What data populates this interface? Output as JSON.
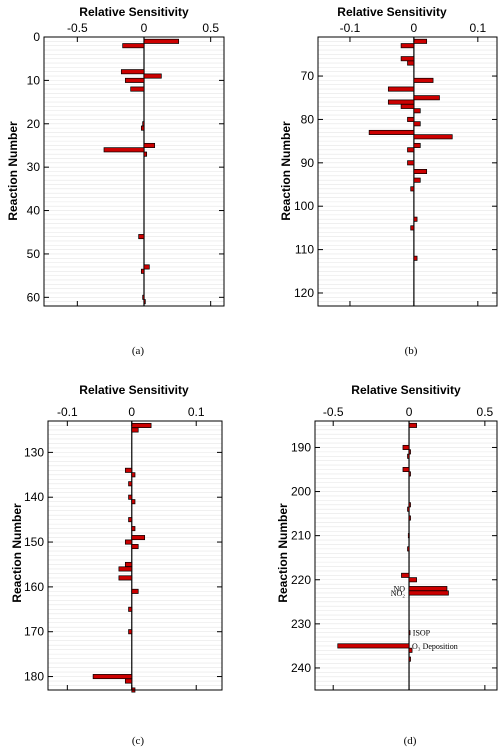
{
  "figure": {
    "bar_color": "#cc0000",
    "bar_edge": "#000000",
    "grid_color": "#e6e6e6"
  },
  "panels": [
    {
      "caption": "(a)",
      "xlabel": "Relative Sensitivity",
      "ylabel": "Reaction Number"
    },
    {
      "caption": "(b)",
      "xlabel": "Relative Sensitivity",
      "ylabel": "Reaction Number"
    },
    {
      "caption": "(c)",
      "xlabel": "Relative Sensitivity",
      "ylabel": "Reaction Number"
    },
    {
      "caption": "(d)",
      "xlabel": "Relative Sensitivity",
      "ylabel": "Reaction Number"
    }
  ],
  "chart_data": [
    {
      "type": "bar",
      "orientation": "horizontal",
      "xlabel": "Relative Sensitivity",
      "ylabel": "Reaction Number",
      "xlim": [
        -0.75,
        0.6
      ],
      "ylim": [
        0,
        62
      ],
      "y_reversed": true,
      "xticks": [
        -0.5,
        0,
        0.5
      ],
      "xtick_labels": [
        "-0.5",
        "0",
        "0.5"
      ],
      "yticks": [
        0,
        10,
        20,
        30,
        40,
        50,
        60
      ],
      "ytick_labels": [
        "0",
        "10",
        "20",
        "30",
        "40",
        "50",
        "60"
      ],
      "grid": true,
      "bars": [
        {
          "reaction": 1,
          "value": 0.26
        },
        {
          "reaction": 2,
          "value": -0.16
        },
        {
          "reaction": 8,
          "value": -0.17
        },
        {
          "reaction": 9,
          "value": 0.13
        },
        {
          "reaction": 10,
          "value": -0.14
        },
        {
          "reaction": 12,
          "value": -0.1
        },
        {
          "reaction": 20,
          "value": -0.01
        },
        {
          "reaction": 21,
          "value": -0.02
        },
        {
          "reaction": 25,
          "value": 0.08
        },
        {
          "reaction": 26,
          "value": -0.3
        },
        {
          "reaction": 27,
          "value": 0.02
        },
        {
          "reaction": 46,
          "value": -0.04
        },
        {
          "reaction": 53,
          "value": 0.04
        },
        {
          "reaction": 54,
          "value": -0.02
        },
        {
          "reaction": 60,
          "value": -0.01
        },
        {
          "reaction": 61,
          "value": 0.01
        }
      ]
    },
    {
      "type": "bar",
      "orientation": "horizontal",
      "xlabel": "Relative Sensitivity",
      "ylabel": "Reaction Number",
      "xlim": [
        -0.15,
        0.13
      ],
      "ylim": [
        61,
        123
      ],
      "y_reversed": true,
      "xticks": [
        -0.1,
        0,
        0.1
      ],
      "xtick_labels": [
        "-0.1",
        "0",
        "0.1"
      ],
      "yticks": [
        70,
        80,
        90,
        100,
        110,
        120
      ],
      "ytick_labels": [
        "70",
        "80",
        "90",
        "100",
        "110",
        "120"
      ],
      "grid": true,
      "bars": [
        {
          "reaction": 62,
          "value": 0.02
        },
        {
          "reaction": 63,
          "value": -0.02
        },
        {
          "reaction": 66,
          "value": -0.02
        },
        {
          "reaction": 67,
          "value": -0.01
        },
        {
          "reaction": 71,
          "value": 0.03
        },
        {
          "reaction": 73,
          "value": -0.04
        },
        {
          "reaction": 75,
          "value": 0.04
        },
        {
          "reaction": 76,
          "value": -0.04
        },
        {
          "reaction": 77,
          "value": -0.02
        },
        {
          "reaction": 78,
          "value": 0.01
        },
        {
          "reaction": 80,
          "value": -0.01
        },
        {
          "reaction": 81,
          "value": 0.01
        },
        {
          "reaction": 83,
          "value": -0.07
        },
        {
          "reaction": 84,
          "value": 0.06
        },
        {
          "reaction": 86,
          "value": 0.01
        },
        {
          "reaction": 87,
          "value": -0.01
        },
        {
          "reaction": 90,
          "value": -0.01
        },
        {
          "reaction": 92,
          "value": 0.02
        },
        {
          "reaction": 94,
          "value": 0.01
        },
        {
          "reaction": 96,
          "value": -0.005
        },
        {
          "reaction": 103,
          "value": 0.005
        },
        {
          "reaction": 105,
          "value": -0.005
        },
        {
          "reaction": 112,
          "value": 0.005
        }
      ]
    },
    {
      "type": "bar",
      "orientation": "horizontal",
      "xlabel": "Relative Sensitivity",
      "ylabel": "Reaction Number",
      "xlim": [
        -0.13,
        0.14
      ],
      "ylim": [
        123,
        183
      ],
      "y_reversed": true,
      "xticks": [
        -0.1,
        0,
        0.1
      ],
      "xtick_labels": [
        "-0.1",
        "0",
        "0.1"
      ],
      "yticks": [
        130,
        140,
        150,
        160,
        170,
        180
      ],
      "ytick_labels": [
        "130",
        "140",
        "150",
        "160",
        "170",
        "180"
      ],
      "grid": true,
      "bars": [
        {
          "reaction": 124,
          "value": 0.03
        },
        {
          "reaction": 125,
          "value": 0.01
        },
        {
          "reaction": 134,
          "value": -0.01
        },
        {
          "reaction": 135,
          "value": 0.005
        },
        {
          "reaction": 137,
          "value": -0.005
        },
        {
          "reaction": 140,
          "value": -0.005
        },
        {
          "reaction": 141,
          "value": 0.005
        },
        {
          "reaction": 145,
          "value": -0.005
        },
        {
          "reaction": 147,
          "value": 0.005
        },
        {
          "reaction": 149,
          "value": 0.02
        },
        {
          "reaction": 150,
          "value": -0.01
        },
        {
          "reaction": 151,
          "value": 0.01
        },
        {
          "reaction": 155,
          "value": -0.01
        },
        {
          "reaction": 156,
          "value": -0.02
        },
        {
          "reaction": 158,
          "value": -0.02
        },
        {
          "reaction": 161,
          "value": 0.01
        },
        {
          "reaction": 165,
          "value": -0.005
        },
        {
          "reaction": 170,
          "value": -0.005
        },
        {
          "reaction": 180,
          "value": -0.06
        },
        {
          "reaction": 181,
          "value": -0.01
        },
        {
          "reaction": 183,
          "value": 0.005
        }
      ]
    },
    {
      "type": "bar",
      "orientation": "horizontal",
      "xlabel": "Relative Sensitivity",
      "ylabel": "Reaction Number",
      "xlim": [
        -0.62,
        0.58
      ],
      "ylim": [
        184,
        245
      ],
      "y_reversed": true,
      "xticks": [
        -0.5,
        0,
        0.5
      ],
      "xtick_labels": [
        "-0.5",
        "0",
        "0.5"
      ],
      "yticks": [
        190,
        200,
        210,
        220,
        230,
        240
      ],
      "ytick_labels": [
        "190",
        "200",
        "210",
        "220",
        "230",
        "240"
      ],
      "grid": true,
      "bars": [
        {
          "reaction": 185,
          "value": 0.05
        },
        {
          "reaction": 190,
          "value": -0.04
        },
        {
          "reaction": 191,
          "value": 0.01
        },
        {
          "reaction": 192,
          "value": -0.01
        },
        {
          "reaction": 195,
          "value": -0.04
        },
        {
          "reaction": 196,
          "value": 0.01
        },
        {
          "reaction": 203,
          "value": 0.01
        },
        {
          "reaction": 204,
          "value": -0.01
        },
        {
          "reaction": 206,
          "value": 0.01
        },
        {
          "reaction": 210,
          "value": -0.005
        },
        {
          "reaction": 213,
          "value": -0.01
        },
        {
          "reaction": 219,
          "value": -0.05
        },
        {
          "reaction": 220,
          "value": 0.05
        },
        {
          "reaction": 222,
          "value": 0.25
        },
        {
          "reaction": 223,
          "value": 0.26
        },
        {
          "reaction": 232,
          "value": 0.005
        },
        {
          "reaction": 235,
          "value": -0.47
        },
        {
          "reaction": 236,
          "value": 0.02
        },
        {
          "reaction": 238,
          "value": 0.01
        }
      ],
      "annotations": [
        {
          "reaction": 222,
          "text": "NO",
          "side": "left"
        },
        {
          "reaction": 223,
          "text": "NO₂",
          "side": "left"
        },
        {
          "reaction": 232,
          "text": "ISOP",
          "side": "right"
        },
        {
          "reaction": 235,
          "text": "O₃ Deposition",
          "side": "right"
        }
      ]
    }
  ]
}
